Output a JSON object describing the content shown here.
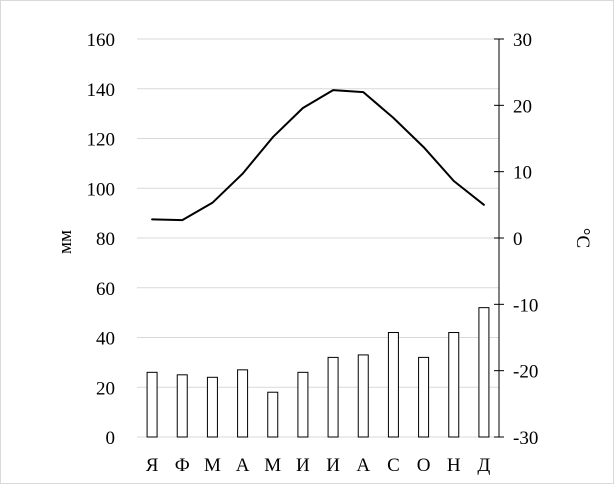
{
  "chart_data": {
    "type": "bar",
    "title": "",
    "categories": [
      "Я",
      "Ф",
      "М",
      "А",
      "М",
      "И",
      "И",
      "А",
      "С",
      "О",
      "Н",
      "Д"
    ],
    "series": [
      {
        "axis": "left",
        "type": "bar",
        "values": [
          26,
          25,
          24,
          27,
          18,
          26,
          32,
          33,
          42,
          32,
          42,
          52
        ]
      },
      {
        "axis": "right",
        "type": "line",
        "values": [
          2.8,
          2.7,
          5.3,
          9.7,
          15.2,
          19.6,
          22.3,
          22.0,
          18.1,
          13.7,
          8.6,
          5.0
        ]
      }
    ],
    "ylabel": "мм",
    "ylabel_right": "°C",
    "ylim": [
      0,
      160
    ],
    "ylim_right": [
      -30,
      30
    ],
    "yticks": [
      "0",
      "20",
      "40",
      "60",
      "80",
      "100",
      "120",
      "140",
      "160"
    ],
    "yticks_right": [
      "-30",
      "-20",
      "-10",
      "0",
      "10",
      "20",
      "30"
    ],
    "grid": true,
    "colors": {
      "bar_fill": "#ffffff",
      "bar_stroke": "#000000",
      "line": "#000000",
      "grid": "#d9d9d9"
    }
  }
}
